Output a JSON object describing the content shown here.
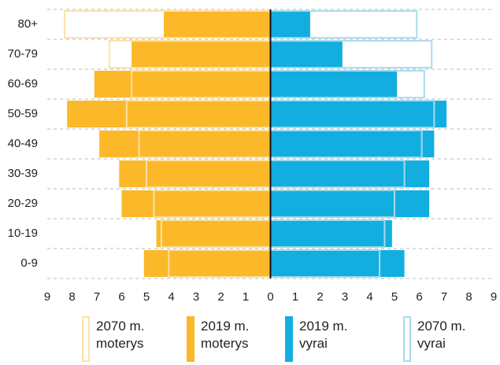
{
  "chart_data": {
    "type": "population-pyramid",
    "categories": [
      "80+",
      "70-79",
      "60-69",
      "50-59",
      "40-49",
      "30-39",
      "20-29",
      "10-19",
      "0-9"
    ],
    "xlim": [
      -9,
      9
    ],
    "xticks": [
      {
        "value": -9,
        "label": "9"
      },
      {
        "value": -8,
        "label": "8"
      },
      {
        "value": -7,
        "label": "7"
      },
      {
        "value": -6,
        "label": "6"
      },
      {
        "value": -5,
        "label": "5"
      },
      {
        "value": -4,
        "label": "4"
      },
      {
        "value": -3,
        "label": "3"
      },
      {
        "value": -2,
        "label": "2"
      },
      {
        "value": -1,
        "label": "1"
      },
      0,
      1,
      2,
      3,
      4,
      5,
      6,
      7,
      8,
      9
    ],
    "series": [
      {
        "name": "2070 m. moterys",
        "color": "#fde2a4",
        "side": "left",
        "style": "outline",
        "values": [
          8.3,
          6.5,
          5.6,
          5.8,
          5.3,
          5.0,
          4.7,
          4.4,
          4.1
        ]
      },
      {
        "name": "2019 m. moterys",
        "color": "#fbb829",
        "side": "left",
        "style": "filled",
        "values": [
          4.3,
          5.6,
          7.1,
          8.2,
          6.9,
          6.1,
          6.0,
          4.6,
          5.1
        ]
      },
      {
        "name": "2019 m. vyrai",
        "color": "#12aee0",
        "side": "right",
        "style": "filled",
        "values": [
          1.6,
          2.9,
          5.1,
          7.1,
          6.6,
          6.4,
          6.4,
          4.9,
          5.4
        ]
      },
      {
        "name": "2070 m. vyrai",
        "color": "#a8dbee",
        "side": "right",
        "style": "outline",
        "values": [
          5.9,
          6.5,
          6.2,
          6.6,
          6.1,
          5.4,
          5.0,
          4.6,
          4.4
        ]
      }
    ]
  }
}
